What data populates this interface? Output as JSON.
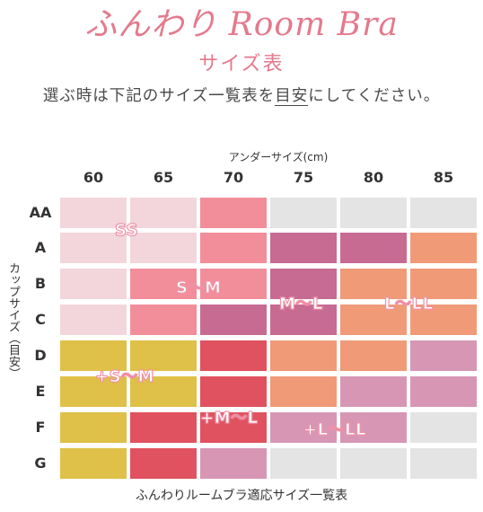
{
  "header": {
    "title": "ふんわり Room Bra",
    "subtitle": "サイズ表",
    "note_before": "選ぶ時は下記のサイズ一覧表を",
    "note_underline": "目安",
    "note_after": "にしてください。"
  },
  "table": {
    "top_axis_label": "アンダーサイズ(cm)",
    "left_axis_label": "カップサイズ（目安）",
    "columns": [
      "60",
      "65",
      "70",
      "75",
      "80",
      "85"
    ],
    "rows": [
      "AA",
      "A",
      "B",
      "C",
      "D",
      "E",
      "F",
      "G"
    ],
    "colors": {
      "pale_pink": "#f2d6dc",
      "pink": "#f28e9a",
      "mauve": "#c76b93",
      "orange": "#f09a78",
      "mustard": "#dfc048",
      "red": "#e0525f",
      "lilac": "#d797b4",
      "gray": "#e4e4e4"
    },
    "grid": [
      [
        "pale_pink",
        "pale_pink",
        "pink",
        "gray",
        "gray",
        "gray"
      ],
      [
        "pale_pink",
        "pale_pink",
        "pink",
        "mauve",
        "mauve",
        "orange"
      ],
      [
        "pale_pink",
        "pink",
        "pink",
        "mauve",
        "orange",
        "orange"
      ],
      [
        "pale_pink",
        "pink",
        "mauve",
        "mauve",
        "orange",
        "orange"
      ],
      [
        "mustard",
        "mustard",
        "red",
        "orange",
        "orange",
        "lilac"
      ],
      [
        "mustard",
        "mustard",
        "red",
        "orange",
        "lilac",
        "lilac"
      ],
      [
        "mustard",
        "red",
        "red",
        "lilac",
        "lilac",
        "gray"
      ],
      [
        "mustard",
        "red",
        "lilac",
        "gray",
        "gray",
        "gray"
      ]
    ],
    "size_labels": [
      "SS",
      "S～M",
      "M～L",
      "L～LL",
      "+S～M",
      "+M～L",
      "+L～LL"
    ],
    "footer": "ふんわりルームブラ適応サイズ一覧表"
  }
}
